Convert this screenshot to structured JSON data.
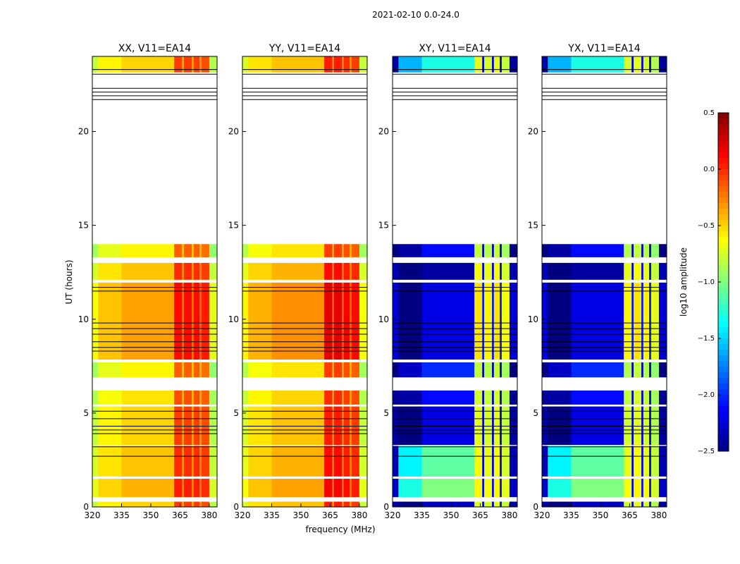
{
  "chart_data": {
    "type": "heatmap",
    "suptitle": "2021-02-10 0.0-24.0",
    "xlabel": "frequency (MHz)",
    "ylabel": "UT (hours)",
    "xlim": [
      320,
      384
    ],
    "ylim": [
      0,
      24
    ],
    "xticks": [
      320,
      335,
      350,
      365,
      380
    ],
    "yticks": [
      0,
      5,
      10,
      15,
      20
    ],
    "colorbar": {
      "label": "log10 amplitude",
      "colormap": "jet",
      "range": [
        -2.5,
        0.5
      ],
      "ticks": [
        "0.5",
        "0.0",
        "−0.5",
        "−1.0",
        "−1.5",
        "−2.0",
        "−2.5"
      ],
      "tick_values": [
        0.5,
        0.0,
        -0.5,
        -1.0,
        -1.5,
        -2.0,
        -2.5
      ]
    },
    "freq_bin_edges": [
      320,
      323,
      335,
      362,
      366,
      367,
      371,
      372,
      375,
      376,
      380,
      384
    ],
    "time_blocks": [
      {
        "start": 0.0,
        "end": 0.28,
        "offset": 0.0,
        "xy_bg": -2.3
      },
      {
        "start": 0.52,
        "end": 1.5,
        "offset": 0.1,
        "xy_bg": -1.0
      },
      {
        "start": 1.62,
        "end": 3.25,
        "offset": 0.05,
        "xy_bg": -1.1
      },
      {
        "start": 3.3,
        "end": 5.35,
        "offset": 0.0,
        "xy_bg": -2.2
      },
      {
        "start": 5.45,
        "end": 6.2,
        "offset": -0.05,
        "xy_bg": -2.1
      },
      {
        "start": 6.9,
        "end": 7.7,
        "offset": -0.1,
        "xy_bg": -2.0
      },
      {
        "start": 7.85,
        "end": 11.95,
        "offset": 0.15,
        "xy_bg": -2.2
      },
      {
        "start": 12.1,
        "end": 13.0,
        "offset": 0.05,
        "xy_bg": -2.4
      },
      {
        "start": 13.3,
        "end": 14.0,
        "offset": -0.1,
        "xy_bg": -2.1
      },
      {
        "start": 23.15,
        "end": 24.0,
        "offset": 0.0,
        "xy_bg": -1.3
      }
    ],
    "flag_lines_hours": [
      2.7,
      3.2,
      3.9,
      4.1,
      4.3,
      4.7,
      5.1,
      8.3,
      8.5,
      8.8,
      9.2,
      9.5,
      9.8,
      11.5,
      11.7,
      21.7,
      21.9,
      22.1,
      22.3,
      23.05,
      23.3
    ],
    "panels": [
      {
        "title": "XX, V11=EA14",
        "levels": [
          -0.8,
          -0.6,
          -0.5,
          -0.05,
          -0.35,
          -0.05,
          -0.35,
          -0.05,
          -0.35,
          -0.1,
          -0.85
        ],
        "cross": false
      },
      {
        "title": "YY, V11=EA14",
        "levels": [
          -0.75,
          -0.55,
          -0.45,
          0.05,
          -0.3,
          0.05,
          -0.3,
          0.0,
          -0.3,
          -0.05,
          -0.8
        ],
        "cross": false
      },
      {
        "title": "XY, V11=EA14",
        "levels": [
          -2.4,
          -2.4,
          -2.3,
          -0.7,
          -2.2,
          -0.75,
          -2.2,
          -0.7,
          -2.2,
          -0.8,
          -2.4
        ],
        "cross": true
      },
      {
        "title": "YX, V11=EA14",
        "levels": [
          -2.4,
          -2.4,
          -2.3,
          -0.75,
          -2.2,
          -0.7,
          -2.2,
          -0.75,
          -2.2,
          -0.85,
          -2.4
        ],
        "cross": true
      }
    ]
  }
}
